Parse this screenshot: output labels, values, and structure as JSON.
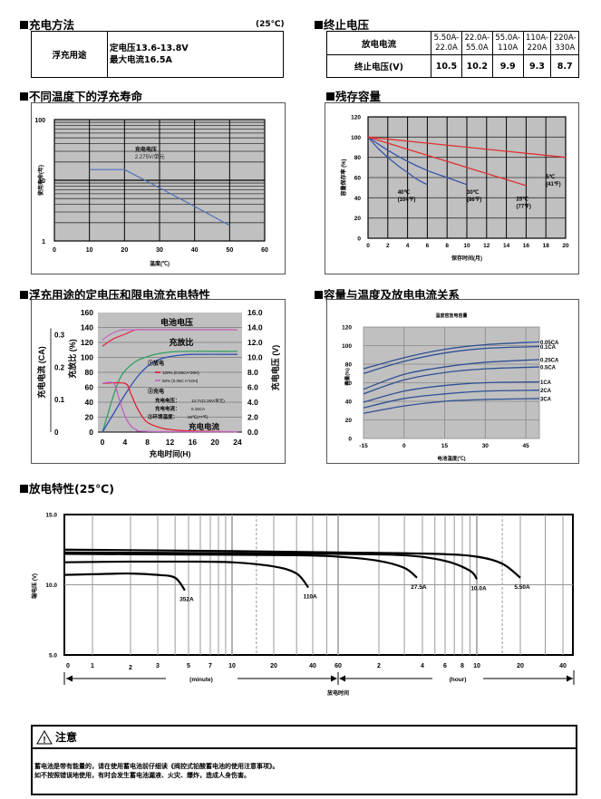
{
  "charging_method": {
    "title": "充电方法",
    "temp_note": "(25℃)",
    "row_label": "浮充用途",
    "lines": [
      "定电压13.6-13.8V",
      "最大电流16.5A"
    ]
  },
  "cutoff_voltage": {
    "title": "终止电压",
    "row1_label": "放电电流",
    "row2_label": "终止电压(V)",
    "ranges": [
      {
        "top": "5.50A-",
        "bottom": "22.0A",
        "voltage": "10.5"
      },
      {
        "top": "22.0A-",
        "bottom": "55.0A",
        "voltage": "10.2"
      },
      {
        "top": "55.0A-",
        "bottom": "110A",
        "voltage": "9.9"
      },
      {
        "top": "110A-",
        "bottom": "220A",
        "voltage": "9.3"
      },
      {
        "top": "220A-",
        "bottom": "330A",
        "voltage": "8.7"
      }
    ]
  },
  "float_life_section": {
    "title": "不同温度下的浮充寿命"
  },
  "residual_section": {
    "title": "残存容量"
  },
  "charge_section": {
    "title": "浮充用途的定电压和限电流充电特性"
  },
  "capacity_temp_section": {
    "title": "容量与温度及放电电流关系"
  },
  "discharge_section": {
    "title": "放电特性(25℃)"
  },
  "chart_data": [
    {
      "id": "float-life",
      "type": "line",
      "title": "",
      "xlabel": "温度(℃)",
      "ylabel": "使用寿命(年)",
      "xlim": [
        0,
        60
      ],
      "ylim": [
        1,
        100
      ],
      "yscale": "log",
      "xticks": [
        "0",
        "10",
        "20",
        "30",
        "40",
        "50",
        "60"
      ],
      "yticks": [
        "1",
        "10",
        "100"
      ],
      "annotation": [
        "充电电压",
        "2.275V/单元"
      ],
      "series": [
        {
          "name": "寿命",
          "x": [
            10,
            20,
            30,
            40,
            50
          ],
          "y": [
            15,
            15,
            7.5,
            3.7,
            1.8
          ],
          "color": "#4a6fb5"
        }
      ]
    },
    {
      "id": "residual-capacity",
      "type": "line",
      "xlabel": "保存时间(月)",
      "ylabel": "容量保存率 (%)",
      "xlim": [
        0,
        20
      ],
      "ylim": [
        0,
        120
      ],
      "xticks": [
        "0",
        "2",
        "4",
        "6",
        "8",
        "10",
        "12",
        "14",
        "16",
        "18",
        "20"
      ],
      "yticks": [
        "0",
        "20",
        "40",
        "60",
        "80",
        "100",
        "120"
      ],
      "series": [
        {
          "name": "40℃ (104℉)",
          "label": [
            "40℃",
            "(104℉)"
          ],
          "x": [
            0,
            1,
            2,
            3,
            4,
            5,
            6
          ],
          "y": [
            100,
            89,
            80,
            72,
            65,
            58,
            53
          ],
          "color": "#3a55a8"
        },
        {
          "name": "30℃ (86℉)",
          "label": [
            "30℃",
            "(86℉)"
          ],
          "x": [
            0,
            2,
            4,
            6,
            8,
            10
          ],
          "y": [
            100,
            87,
            76,
            67,
            60,
            53
          ],
          "color": "#3a55a8"
        },
        {
          "name": "25℃ (77℉)",
          "label": [
            "25℃",
            "(77℉)"
          ],
          "x": [
            0,
            4,
            8,
            12,
            16
          ],
          "y": [
            100,
            88,
            76,
            64,
            52
          ],
          "color": "#e03030"
        },
        {
          "name": "5℃ (41℉)",
          "label": [
            "5℃",
            "(41℉)"
          ],
          "x": [
            0,
            10,
            20
          ],
          "y": [
            100,
            90,
            80
          ],
          "color": "#e03030"
        }
      ]
    },
    {
      "id": "charge-characteristics",
      "type": "line",
      "xlabel": "充电时间(H)",
      "ylabel_left_outer": "充电电流 (CA)",
      "ylabel_left_inner": "充放比 (%)",
      "ylabel_right": "充电电压 (V)",
      "xlim": [
        0,
        24
      ],
      "ylim_pct": [
        0,
        160
      ],
      "ylim_ca": [
        0,
        0.35
      ],
      "ylim_v": [
        0,
        16
      ],
      "xticks": [
        "0",
        "4",
        "8",
        "12",
        "16",
        "20",
        "24"
      ],
      "yticks_pct": [
        "0",
        "20",
        "40",
        "60",
        "80",
        "100",
        "120",
        "140",
        "160"
      ],
      "yticks_ca": [
        "0",
        "0.1",
        "0.2",
        "0.3"
      ],
      "yticks_v": [
        "0.0",
        "2.0",
        "4.0",
        "6.0",
        "8.0",
        "10.0",
        "12.0",
        "14.0",
        "16.0"
      ],
      "labels": {
        "voltage": "电池电压",
        "ratio": "充放比",
        "current": "充电电流"
      },
      "legend": {
        "discharge_head": "①放电",
        "d100": "100% (0.05CA*20H)",
        "d50": "50% (0.05C A*10H)",
        "charge_head": "②充电",
        "cv": "充电电压：",
        "cv_val": "13.7V(2.28V/单元)",
        "cc": "充电电流：",
        "cc_val": "0.15CA",
        "env": "③环境温度：",
        "env_val": "25℃(77℉)"
      },
      "series": [
        {
          "name": "电池电压 100%",
          "axis": "v",
          "color": "#e03050",
          "x": [
            0,
            2,
            4,
            6,
            8,
            24
          ],
          "y": [
            11.5,
            12.5,
            13.1,
            13.7,
            13.7,
            13.7
          ]
        },
        {
          "name": "电池电压 50%",
          "axis": "v",
          "color": "#c070c0",
          "x": [
            0,
            1,
            2,
            3,
            4,
            5,
            24
          ],
          "y": [
            12.3,
            12.9,
            13.3,
            13.6,
            13.7,
            13.7,
            13.7
          ]
        },
        {
          "name": "充放比 50%",
          "axis": "pct",
          "color": "#30a060",
          "x": [
            0,
            1,
            2,
            3,
            4,
            6,
            8,
            10,
            14,
            24
          ],
          "y": [
            0,
            25,
            50,
            70,
            82,
            95,
            101,
            105,
            108,
            108
          ]
        },
        {
          "name": "充放比 100%",
          "axis": "pct",
          "color": "#3050b0",
          "x": [
            0,
            2,
            4,
            6,
            8,
            10,
            12,
            14,
            16,
            24
          ],
          "y": [
            0,
            25,
            50,
            72,
            88,
            97,
            101,
            103,
            104,
            104
          ]
        },
        {
          "name": "充电电流 100%",
          "axis": "ca",
          "color": "#e02030",
          "x": [
            0,
            4,
            5,
            6,
            7,
            8,
            10,
            12,
            16,
            24
          ],
          "y": [
            0.15,
            0.15,
            0.12,
            0.08,
            0.05,
            0.03,
            0.015,
            0.008,
            0.003,
            0.001
          ]
        },
        {
          "name": "充电电流 50%",
          "axis": "ca",
          "color": "#c060c0",
          "x": [
            0,
            2,
            3,
            4,
            5,
            6,
            8,
            24
          ],
          "y": [
            0.15,
            0.15,
            0.1,
            0.05,
            0.02,
            0.008,
            0.002,
            0.001
          ]
        }
      ]
    },
    {
      "id": "capacity-temperature",
      "type": "line",
      "title": "温度容放电容量",
      "xlabel": "电池温度(℃)",
      "ylabel": "容量(%)",
      "xlim": [
        -15,
        50
      ],
      "ylim": [
        0,
        120
      ],
      "xticks": [
        "-15",
        "0",
        "15",
        "30",
        "45"
      ],
      "yticks": [
        "0",
        "20",
        "40",
        "60",
        "80",
        "100",
        "120"
      ],
      "x": [
        -15,
        0,
        15,
        30,
        50
      ],
      "series": [
        {
          "name": "0.05CA",
          "values": [
            75,
            87,
            96,
            101,
            104
          ]
        },
        {
          "name": "0.1CA",
          "values": [
            70,
            83,
            92,
            97,
            99
          ]
        },
        {
          "name": "0.25CA",
          "values": [
            53,
            69,
            77,
            82,
            85
          ]
        },
        {
          "name": "0.5CA",
          "values": [
            48,
            63,
            71,
            75,
            77
          ]
        },
        {
          "name": "1CA",
          "values": [
            39,
            51,
            57,
            60,
            61
          ]
        },
        {
          "name": "2CA",
          "values": [
            33,
            43,
            48,
            51,
            52
          ]
        },
        {
          "name": "3CA",
          "values": [
            27,
            35,
            40,
            42,
            43
          ]
        }
      ]
    },
    {
      "id": "discharge-characteristics",
      "type": "line",
      "xlabel": "放电时间",
      "ylabel": "端电压 (V)",
      "ylim": [
        5.0,
        15.0
      ],
      "yticks": [
        "5.0",
        "10.0",
        "15.0"
      ],
      "xscale": "log",
      "xlim_minutes": [
        0.6,
        2880
      ],
      "xticks_minute": [
        "0",
        "1",
        "2",
        "3",
        "5",
        "7",
        "10",
        "20",
        "40",
        "60"
      ],
      "xticks_hour": [
        "2",
        "4",
        "6",
        "8",
        "10",
        "20",
        "40"
      ],
      "unit_minute": "(minute)",
      "unit_hour": "(hour)",
      "series": [
        {
          "name": "352A",
          "minutes": [
            0.6,
            1,
            2,
            3,
            4,
            4.7
          ],
          "y": [
            10.7,
            10.75,
            10.8,
            10.7,
            10.5,
            9.6
          ]
        },
        {
          "name": "110A",
          "minutes": [
            0.6,
            2,
            5,
            10,
            20,
            30,
            37
          ],
          "y": [
            11.6,
            11.65,
            11.65,
            11.6,
            11.3,
            10.8,
            9.8
          ]
        },
        {
          "name": "27.5A",
          "minutes": [
            0.6,
            5,
            30,
            60,
            120,
            180,
            220
          ],
          "y": [
            12.2,
            12.15,
            12.1,
            12.0,
            11.7,
            11.2,
            10.5
          ]
        },
        {
          "name": "10.0A",
          "minutes": [
            0.6,
            10,
            60,
            180,
            360,
            540,
            600
          ],
          "y": [
            12.3,
            12.25,
            12.2,
            12.1,
            11.7,
            11.0,
            10.4
          ]
        },
        {
          "name": "5.50A",
          "minutes": [
            0.6,
            10,
            60,
            300,
            600,
            900,
            1200
          ],
          "y": [
            12.5,
            12.4,
            12.3,
            12.2,
            12.0,
            11.5,
            10.5
          ]
        }
      ]
    }
  ],
  "warning": {
    "title": "注意",
    "lines": [
      "蓄电池是带有能量的，请在使用蓄电池前仔细读《阀控式铅酸蓄电池的使用注意事项》。",
      "如不按照错误地使用，有时会发生蓄电池漏液、火灾、爆炸，造成人身伤害。"
    ]
  }
}
